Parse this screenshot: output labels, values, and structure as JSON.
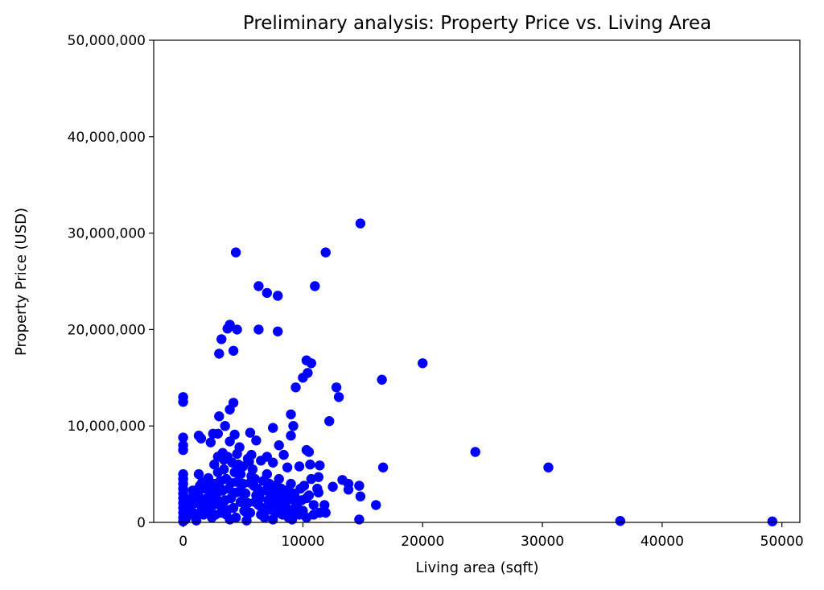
{
  "chart_data": {
    "type": "scatter",
    "title": "Preliminary analysis: Property Price vs. Living Area",
    "xlabel": "Living area (sqft)",
    "ylabel": "Property Price (USD)",
    "xlim": [
      -2460,
      51500
    ],
    "ylim": [
      0,
      50000000
    ],
    "xticks": [
      0,
      10000,
      20000,
      30000,
      40000,
      50000
    ],
    "xtick_labels": [
      "0",
      "10000",
      "20000",
      "30000",
      "40000",
      "50000"
    ],
    "yticks": [
      0,
      10000000,
      20000000,
      30000000,
      40000000,
      50000000
    ],
    "ytick_labels": [
      "0",
      "10,000,000",
      "20,000,000",
      "30,000,000",
      "40,000,000",
      "50,000,000"
    ],
    "grid": false,
    "legend": "none",
    "marker_color": "#0000ff",
    "series": [
      {
        "points": [
          [
            14800,
            31000000
          ],
          [
            4400,
            28000000
          ],
          [
            11900,
            28000000
          ],
          [
            6300,
            24500000
          ],
          [
            11000,
            24500000
          ],
          [
            7000,
            23800000
          ],
          [
            7900,
            23500000
          ],
          [
            3900,
            20500000
          ],
          [
            4500,
            20000000
          ],
          [
            6300,
            20000000
          ],
          [
            7900,
            19800000
          ],
          [
            3700,
            20100000
          ],
          [
            3200,
            19000000
          ],
          [
            3000,
            17500000
          ],
          [
            4200,
            17800000
          ],
          [
            10300,
            16800000
          ],
          [
            10700,
            16500000
          ],
          [
            20000,
            16500000
          ],
          [
            10400,
            15500000
          ],
          [
            10000,
            15000000
          ],
          [
            16600,
            14800000
          ],
          [
            9400,
            14000000
          ],
          [
            12800,
            14000000
          ],
          [
            13000,
            13000000
          ],
          [
            0,
            13000000
          ],
          [
            0,
            12500000
          ],
          [
            4200,
            12400000
          ],
          [
            3900,
            11700000
          ],
          [
            9000,
            11200000
          ],
          [
            3000,
            11000000
          ],
          [
            12200,
            10500000
          ],
          [
            3500,
            10000000
          ],
          [
            7500,
            9800000
          ],
          [
            9200,
            10000000
          ],
          [
            0,
            8800000
          ],
          [
            1300,
            9000000
          ],
          [
            1500,
            8700000
          ],
          [
            2500,
            9200000
          ],
          [
            2900,
            9200000
          ],
          [
            4300,
            9100000
          ],
          [
            5600,
            9300000
          ],
          [
            9000,
            9000000
          ],
          [
            0,
            8000000
          ],
          [
            0,
            7500000
          ],
          [
            2300,
            8300000
          ],
          [
            3900,
            8400000
          ],
          [
            4700,
            7800000
          ],
          [
            6100,
            8500000
          ],
          [
            8000,
            8000000
          ],
          [
            10300,
            7500000
          ],
          [
            10500,
            7300000
          ],
          [
            24400,
            7300000
          ],
          [
            2900,
            6800000
          ],
          [
            3400,
            6500000
          ],
          [
            7000,
            6800000
          ],
          [
            8400,
            7000000
          ],
          [
            10600,
            6000000
          ],
          [
            11400,
            5900000
          ],
          [
            16700,
            5700000
          ],
          [
            30500,
            5700000
          ],
          [
            0,
            5000000
          ],
          [
            0,
            4500000
          ],
          [
            0,
            4000000
          ],
          [
            0,
            3500000
          ],
          [
            0,
            3000000
          ],
          [
            0,
            2500000
          ],
          [
            0,
            2000000
          ],
          [
            0,
            1500000
          ],
          [
            0,
            1000000
          ],
          [
            0,
            500000
          ],
          [
            0,
            100000
          ],
          [
            1300,
            5000000
          ],
          [
            9700,
            5800000
          ],
          [
            10700,
            4500000
          ],
          [
            11300,
            4700000
          ],
          [
            13300,
            4400000
          ],
          [
            13800,
            4000000
          ],
          [
            14700,
            3800000
          ],
          [
            12500,
            3700000
          ],
          [
            13800,
            3400000
          ],
          [
            14800,
            2700000
          ],
          [
            11300,
            3100000
          ],
          [
            10300,
            2500000
          ],
          [
            16100,
            1800000
          ],
          [
            11800,
            1800000
          ],
          [
            10300,
            500000
          ],
          [
            10900,
            800000
          ],
          [
            11400,
            1000000
          ],
          [
            11900,
            1000000
          ],
          [
            14700,
            300000
          ],
          [
            36500,
            150000
          ],
          [
            49200,
            100000
          ],
          [
            1000,
            3000000
          ],
          [
            1200,
            2000000
          ],
          [
            1400,
            1000000
          ],
          [
            1600,
            4200000
          ],
          [
            1800,
            3500000
          ],
          [
            2000,
            2500000
          ],
          [
            2200,
            1500000
          ],
          [
            2400,
            500000
          ],
          [
            2600,
            4000000
          ],
          [
            2800,
            3000000
          ],
          [
            3000,
            2000000
          ],
          [
            3200,
            1000000
          ],
          [
            3400,
            5500000
          ],
          [
            3600,
            4500000
          ],
          [
            3800,
            3500000
          ],
          [
            4000,
            2500000
          ],
          [
            4200,
            1500000
          ],
          [
            4400,
            500000
          ],
          [
            4600,
            6000000
          ],
          [
            4800,
            5000000
          ],
          [
            5000,
            4000000
          ],
          [
            5200,
            3000000
          ],
          [
            5400,
            2000000
          ],
          [
            5600,
            1000000
          ],
          [
            5800,
            5500000
          ],
          [
            6000,
            4500000
          ],
          [
            6200,
            3500000
          ],
          [
            6400,
            2500000
          ],
          [
            6600,
            1500000
          ],
          [
            6800,
            500000
          ],
          [
            7000,
            5000000
          ],
          [
            7200,
            4000000
          ],
          [
            7400,
            3000000
          ],
          [
            7600,
            2000000
          ],
          [
            7800,
            1000000
          ],
          [
            8000,
            4500000
          ],
          [
            8200,
            3500000
          ],
          [
            8400,
            2500000
          ],
          [
            8600,
            1500000
          ],
          [
            8800,
            500000
          ],
          [
            9000,
            4000000
          ],
          [
            9200,
            3000000
          ],
          [
            9400,
            2000000
          ],
          [
            9600,
            1000000
          ],
          [
            9800,
            3500000
          ],
          [
            1100,
            200000
          ],
          [
            1300,
            2700000
          ],
          [
            1500,
            1800000
          ],
          [
            1700,
            800000
          ],
          [
            1900,
            3800000
          ],
          [
            2100,
            4600000
          ],
          [
            2300,
            2800000
          ],
          [
            2500,
            1800000
          ],
          [
            2700,
            800000
          ],
          [
            2900,
            5200000
          ],
          [
            3100,
            4300000
          ],
          [
            3300,
            3300000
          ],
          [
            3500,
            2300000
          ],
          [
            3700,
            1300000
          ],
          [
            3900,
            300000
          ],
          [
            4100,
            6200000
          ],
          [
            4300,
            5200000
          ],
          [
            4500,
            4200000
          ],
          [
            4700,
            3200000
          ],
          [
            4900,
            2200000
          ],
          [
            5100,
            1200000
          ],
          [
            5300,
            200000
          ],
          [
            5500,
            6300000
          ],
          [
            5700,
            4800000
          ],
          [
            5900,
            3800000
          ],
          [
            6100,
            2800000
          ],
          [
            6300,
            1800000
          ],
          [
            6500,
            800000
          ],
          [
            6700,
            4300000
          ],
          [
            6900,
            3300000
          ],
          [
            7100,
            2300000
          ],
          [
            7300,
            1300000
          ],
          [
            7500,
            300000
          ],
          [
            7700,
            3800000
          ],
          [
            7900,
            2800000
          ],
          [
            8100,
            1800000
          ],
          [
            8300,
            800000
          ],
          [
            8500,
            3300000
          ],
          [
            8700,
            2300000
          ],
          [
            8900,
            1300000
          ],
          [
            9100,
            300000
          ],
          [
            9300,
            2800000
          ],
          [
            9500,
            1800000
          ],
          [
            9700,
            800000
          ],
          [
            9900,
            2300000
          ],
          [
            500,
            1500000
          ],
          [
            700,
            2500000
          ],
          [
            900,
            700000
          ],
          [
            1200,
            3400000
          ],
          [
            1600,
            2200000
          ],
          [
            2000,
            1200000
          ],
          [
            2400,
            3200000
          ],
          [
            2800,
            2400000
          ],
          [
            3200,
            1600000
          ],
          [
            3600,
            800000
          ],
          [
            4000,
            4100000
          ],
          [
            4400,
            3100000
          ],
          [
            4800,
            2100000
          ],
          [
            5200,
            1100000
          ],
          [
            5600,
            4100000
          ],
          [
            6000,
            2100000
          ],
          [
            6400,
            3100000
          ],
          [
            6800,
            1100000
          ],
          [
            7200,
            2100000
          ],
          [
            7600,
            3100000
          ],
          [
            8000,
            1100000
          ],
          [
            8400,
            2100000
          ],
          [
            8800,
            3100000
          ],
          [
            9200,
            1100000
          ],
          [
            9600,
            2100000
          ],
          [
            3300,
            7200000
          ],
          [
            4500,
            7100000
          ],
          [
            5700,
            7000000
          ],
          [
            6500,
            6400000
          ],
          [
            2600,
            6000000
          ],
          [
            3700,
            6800000
          ],
          [
            5000,
            5800000
          ],
          [
            5400,
            6600000
          ],
          [
            7500,
            6200000
          ],
          [
            8700,
            5700000
          ],
          [
            10100,
            3800000
          ],
          [
            10500,
            2800000
          ],
          [
            10900,
            1800000
          ],
          [
            11200,
            3500000
          ],
          [
            10000,
            1200000
          ],
          [
            1800,
            1400000
          ],
          [
            2200,
            2200000
          ],
          [
            2600,
            3100000
          ],
          [
            3000,
            3900000
          ],
          [
            1400,
            3800000
          ],
          [
            700,
            1200000
          ],
          [
            300,
            800000
          ],
          [
            200,
            300000
          ],
          [
            400,
            2000000
          ],
          [
            800,
            3300000
          ]
        ]
      }
    ]
  }
}
